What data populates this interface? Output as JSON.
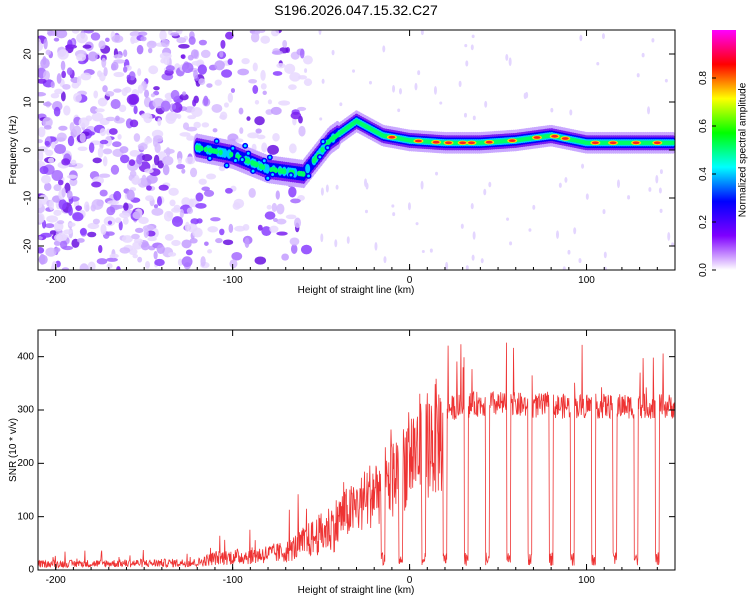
{
  "chart_data": [
    {
      "type": "heatmap",
      "title": "S196.2026.047.15.32.C27",
      "xlabel": "Height of straight line (km)",
      "ylabel": "Frequency (Hz)",
      "xlim": [
        -210,
        150
      ],
      "ylim": [
        -25,
        25
      ],
      "x_ticks": [
        -200,
        -100,
        0,
        100
      ],
      "y_ticks": [
        -20,
        -10,
        0,
        10,
        20
      ],
      "colorbar": {
        "label": "Normalized spectral amplitude",
        "range": [
          0,
          1
        ],
        "ticks": [
          0.0,
          0.2,
          0.4,
          0.6,
          0.8
        ],
        "colors": [
          "#ffffff",
          "#7f00ff",
          "#0000ff",
          "#00ffff",
          "#00ff00",
          "#ffff00",
          "#ff0000",
          "#ff00ff"
        ]
      },
      "ridge": [
        {
          "x": -120,
          "y": 0.5
        },
        {
          "x": -100,
          "y": -1
        },
        {
          "x": -80,
          "y": -4
        },
        {
          "x": -60,
          "y": -5
        },
        {
          "x": -45,
          "y": 2
        },
        {
          "x": -30,
          "y": 6
        },
        {
          "x": -15,
          "y": 3
        },
        {
          "x": 0,
          "y": 2
        },
        {
          "x": 20,
          "y": 1.5
        },
        {
          "x": 40,
          "y": 1.5
        },
        {
          "x": 60,
          "y": 2
        },
        {
          "x": 80,
          "y": 3
        },
        {
          "x": 100,
          "y": 1.5
        },
        {
          "x": 120,
          "y": 1.5
        },
        {
          "x": 150,
          "y": 1.5
        }
      ]
    },
    {
      "type": "line",
      "xlabel": "Height of straight line (km)",
      "ylabel": "SNR (10 * v/v)",
      "xlim": [
        -210,
        150
      ],
      "ylim": [
        0,
        450
      ],
      "x_ticks": [
        -200,
        -100,
        0,
        100
      ],
      "y_ticks": [
        0,
        100,
        200,
        300,
        400
      ],
      "series": [
        {
          "name": "SNR",
          "color": "#ee3333",
          "envelope": [
            {
              "x": -210,
              "y": 15
            },
            {
              "x": -120,
              "y": 18
            },
            {
              "x": -110,
              "y": 30
            },
            {
              "x": -90,
              "y": 35
            },
            {
              "x": -70,
              "y": 45
            },
            {
              "x": -50,
              "y": 90
            },
            {
              "x": -40,
              "y": 120
            },
            {
              "x": -30,
              "y": 140
            },
            {
              "x": -20,
              "y": 180
            },
            {
              "x": -10,
              "y": 210
            },
            {
              "x": 0,
              "y": 260
            },
            {
              "x": 10,
              "y": 290
            },
            {
              "x": 20,
              "y": 310
            },
            {
              "x": 40,
              "y": 320
            },
            {
              "x": 80,
              "y": 315
            },
            {
              "x": 120,
              "y": 315
            },
            {
              "x": 150,
              "y": 315
            }
          ],
          "dips_x": [
            -15,
            -5,
            8,
            20,
            32,
            44,
            56,
            68,
            80,
            92,
            104,
            116,
            128,
            140
          ]
        }
      ]
    }
  ]
}
